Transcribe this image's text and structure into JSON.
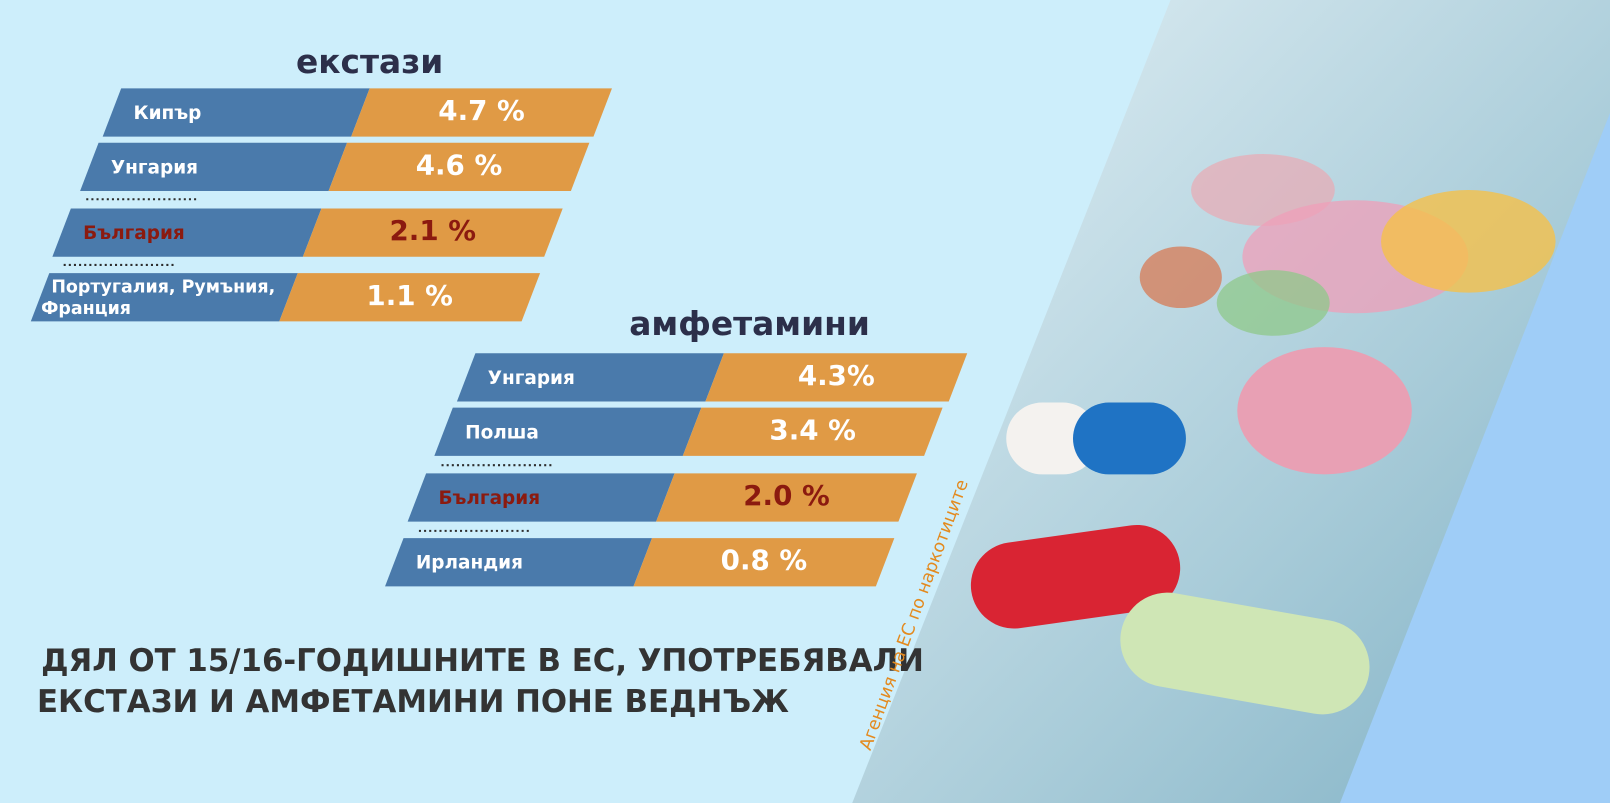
{
  "sections": [
    {
      "title": "екстази",
      "rows": [
        {
          "country": "Кипър",
          "value": "4.7 %"
        },
        {
          "country": "Унгария",
          "value": "4.6 %"
        },
        {
          "country": "България",
          "value": "2.1 %"
        },
        {
          "country": "Португалия, Румъния, Франция",
          "value": "1.1 %"
        }
      ]
    },
    {
      "title": "амфетамини",
      "rows": [
        {
          "country": "Унгария",
          "value": "4.3%"
        },
        {
          "country": "Полша",
          "value": "3.4 %"
        },
        {
          "country": "България",
          "value": "2.0 %"
        },
        {
          "country": "Ирландия",
          "value": "0.8 %"
        }
      ]
    }
  ],
  "caption": [
    "ДЯЛ ОТ 15/16-ГОДИШНИТЕ В ЕС, УПОТРЕБЯВАЛИ",
    "ЕКСТАЗИ И АМФЕТАМИНИ ПОНЕ ВЕДНЪЖ"
  ],
  "source": "Агенция на ЕС по наркотиците"
}
